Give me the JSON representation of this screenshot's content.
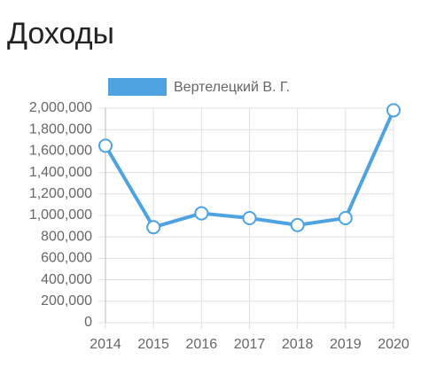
{
  "chart_data": {
    "type": "line",
    "title": "Доходы",
    "categories": [
      "2014",
      "2015",
      "2016",
      "2017",
      "2018",
      "2019",
      "2020"
    ],
    "series": [
      {
        "name": "Вертелецкий В. Г.",
        "color": "#4fa3e0",
        "values": [
          1650000,
          890000,
          1020000,
          975000,
          910000,
          975000,
          1980000
        ]
      }
    ],
    "ylim": [
      0,
      2000000
    ],
    "yticks": [
      0,
      {
        "value": 200000,
        "label": "200,000"
      },
      {
        "value": 400000,
        "label": "400,000"
      },
      {
        "value": 600000,
        "label": "600,000"
      },
      {
        "value": 800000,
        "label": "800,000"
      },
      {
        "value": 1000000,
        "label": "1,000,000"
      },
      {
        "value": 1200000,
        "label": "1,200,000"
      },
      {
        "value": 1400000,
        "label": "1,400,000"
      },
      {
        "value": 1600000,
        "label": "1,600,000"
      },
      {
        "value": 1800000,
        "label": "1,800,000"
      },
      {
        "value": 2000000,
        "label": "2,000,000"
      }
    ],
    "grid": true,
    "legend": "top"
  }
}
